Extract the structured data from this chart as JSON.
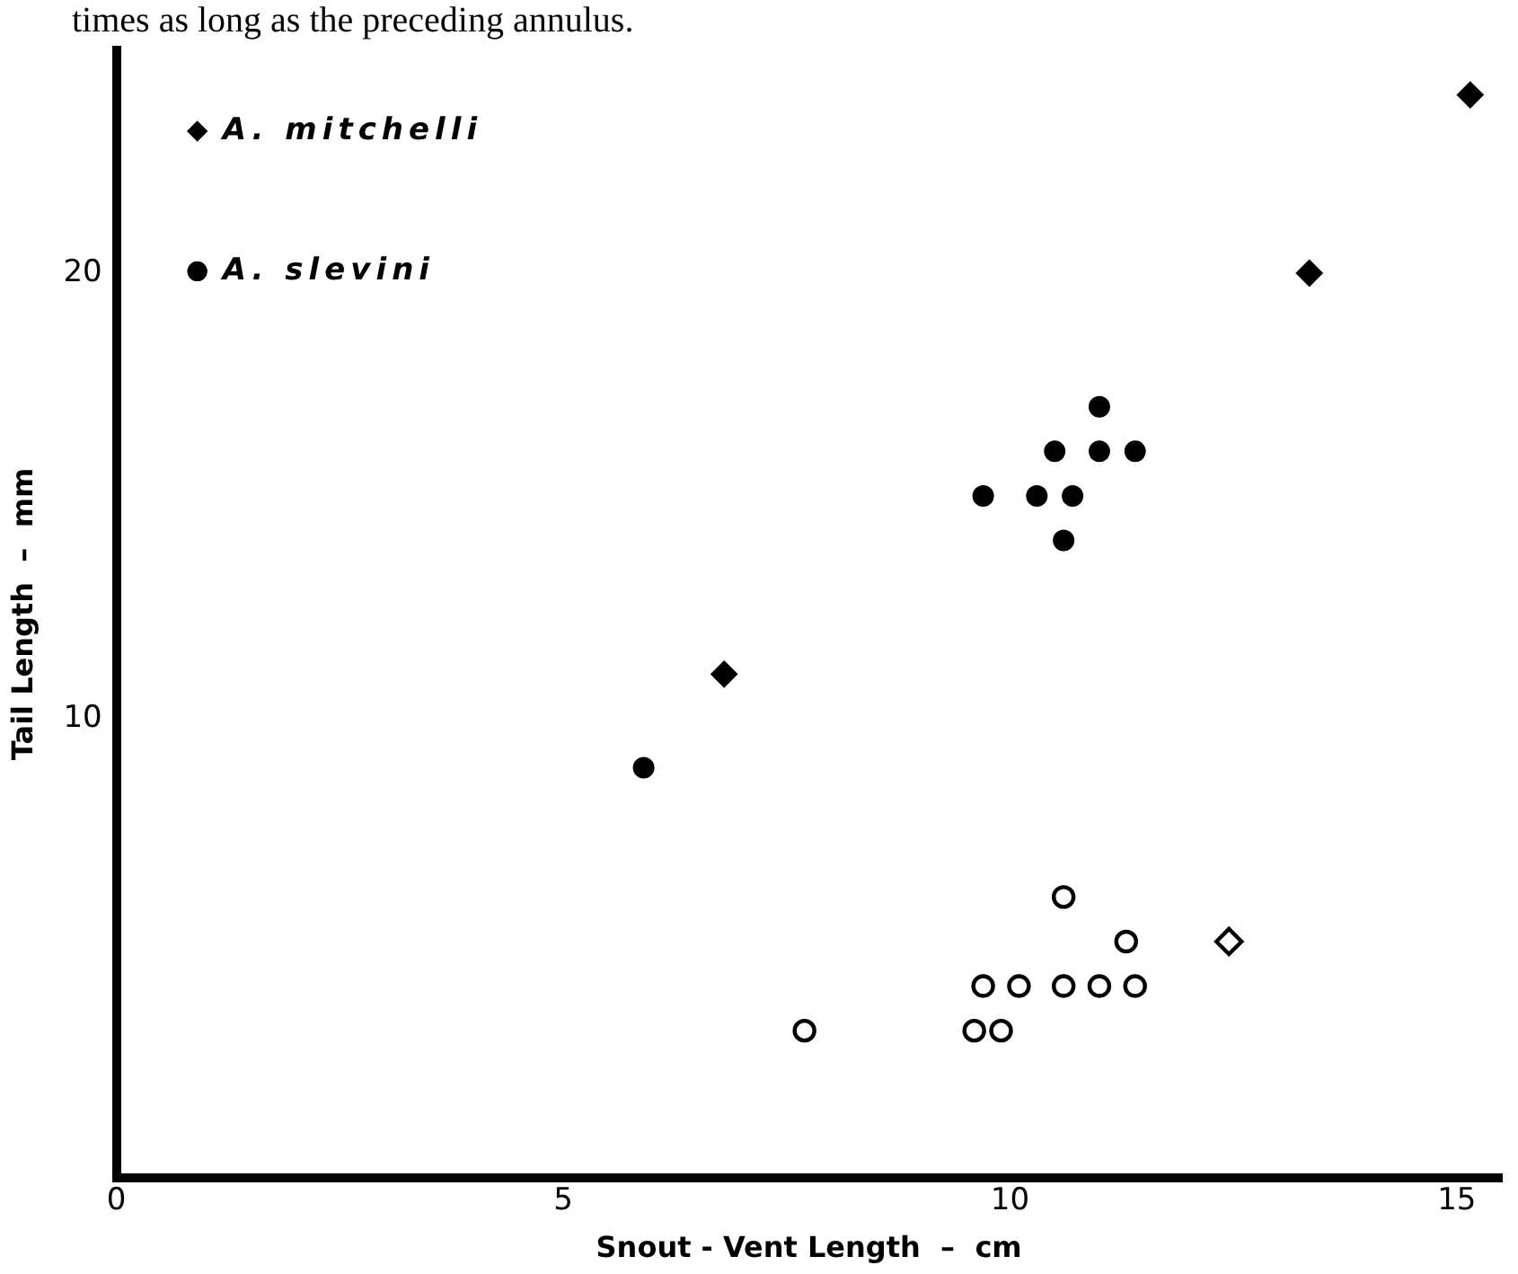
{
  "chart_data": {
    "type": "scatter",
    "xlabel": "Snout - Vent Length  –  cm",
    "ylabel": "Tail Length  –  mm",
    "annotations": [
      "times as long as the preceding annulus."
    ],
    "xlim": [
      0,
      15.5
    ],
    "xticks": [
      0,
      5,
      10,
      15
    ],
    "ylim": [
      -0.3,
      25
    ],
    "yticks": [
      10,
      20
    ],
    "grid": false,
    "legend": "top left",
    "series": [
      {
        "name": "A. mitchelli",
        "color": "#000000",
        "marker": "diamond",
        "x": [
          6.8,
          13.35,
          15.15
        ],
        "values": [
          11,
          20,
          24
        ]
      },
      {
        "name": "A. slevini",
        "color": "#000000",
        "marker": "circle",
        "x": [
          5.9,
          9.7,
          10.3,
          10.7,
          10.6,
          10.5,
          11.0,
          11.4,
          11.0
        ],
        "values": [
          8.9,
          15,
          15,
          15,
          14,
          16,
          16,
          16,
          17
        ]
      },
      {
        "color": "#000000",
        "marker": "circle",
        "x": [
          7.7,
          9.6,
          9.9,
          9.7,
          10.1,
          10.6,
          11.0,
          11.4,
          10.6,
          11.3
        ],
        "values": [
          3,
          3,
          3,
          4,
          4,
          4,
          4,
          4,
          6,
          5
        ]
      },
      {
        "color": "#000000",
        "marker": "diamond",
        "x": [
          12.45
        ],
        "values": [
          5
        ]
      }
    ]
  }
}
